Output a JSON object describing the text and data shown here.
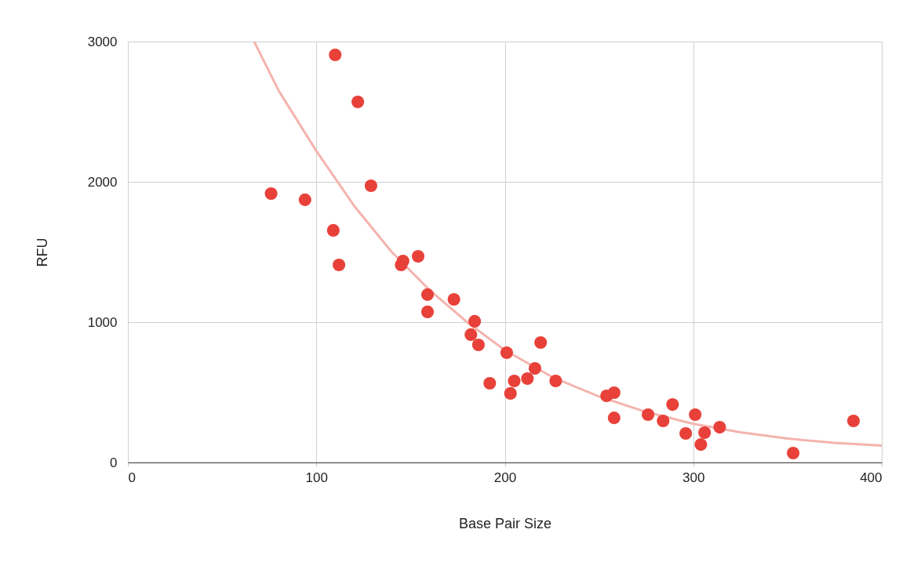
{
  "chart_data": {
    "type": "scatter",
    "xlabel": "Base Pair Size",
    "ylabel": "RFU",
    "xlim": [
      0,
      400
    ],
    "xticks": [
      0,
      100,
      200,
      300,
      400
    ],
    "ylim": [
      0,
      3000
    ],
    "yticks": [
      0,
      1000,
      2000,
      3000
    ],
    "grid": true,
    "series": [
      {
        "marker": "circle",
        "color": "#e8413a",
        "x": [
          76,
          94,
          110,
          122,
          129,
          109,
          112,
          146,
          145,
          154,
          159,
          159,
          173,
          184,
          182,
          186,
          192,
          201,
          203,
          205,
          212,
          216,
          219,
          227,
          254,
          258,
          258,
          276,
          284,
          289,
          296,
          301,
          304,
          306,
          314,
          353,
          385
        ],
        "values": [
          1916,
          1872,
          2905,
          2570,
          1972,
          1654,
          1408,
          1436,
          1408,
          1469,
          1196,
          1073,
          1162,
          1006,
          911,
          838,
          564,
          782,
          492,
          581,
          598,
          670,
          855,
          581,
          475,
          497,
          318,
          341,
          296,
          413,
          207,
          341,
          128,
          212,
          251,
          67,
          296
        ]
      },
      {
        "type": "line",
        "color": "#f4b4ae",
        "x": [
          67,
          80,
          100,
          120,
          140,
          160,
          180,
          200,
          225,
          250,
          275,
          300,
          325,
          350,
          375,
          400
        ],
        "values": [
          3000,
          2650,
          2220,
          1830,
          1500,
          1230,
          1000,
          800,
          610,
          470,
          360,
          275,
          215,
          170,
          140,
          120
        ]
      }
    ]
  }
}
